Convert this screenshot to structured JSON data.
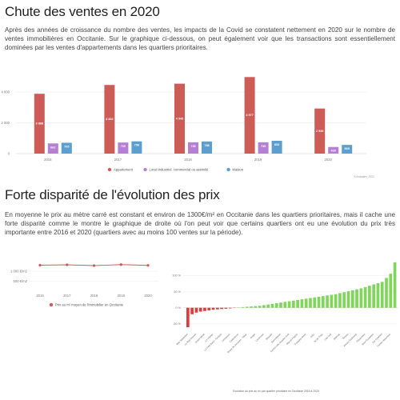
{
  "section1": {
    "title": "Chute des ventes en 2020",
    "text": "Après des années de croissance du nombre des ventes, les impacts de la Covid se constatent nettement en 2020 sur le nombre de ventes immobilières en Occitanie. Sur le graphique ci-dessous, on peut également voir que les transactions sont essentiellement dominées par les ventes d'appartements dans les quartiers prioritaires."
  },
  "section2": {
    "title": "Forte disparité de l'évolution des prix",
    "text": "En moyenne le prix au mètre carré est constant et environ de 1300€/m² en Occitanie dans les quartiers prioritaires, mais il cache une forte disparité comme le montre le graphique de droite où l'on peut voir que certains quartiers ont eu une évolution du prix très importante entre 2016 et 2020 (quartiers avec au moins 100 ventes sur la période)."
  },
  "colors": {
    "appartement": "#cd5c57",
    "local": "#b57fd4",
    "maison": "#5a9fcf",
    "line": "#cd5c57",
    "negative": "#e23a3a",
    "positive": "#7fd65a"
  },
  "chart_data": [
    {
      "type": "bar",
      "categories": [
        "2016",
        "2017",
        "2018",
        "2019",
        "2020"
      ],
      "series": [
        {
          "name": "Appartement",
          "values": [
            3888,
            4462,
            4545,
            4977,
            2930
          ],
          "labels": [
            "3 888",
            "4 462",
            "4 545",
            "4 977",
            "2 930"
          ]
        },
        {
          "name": "Local industriel. commercial ou assimilé",
          "values": [
            662,
            720,
            735,
            735,
            430
          ],
          "labels": [
            "662",
            "720",
            "735",
            "735",
            "430"
          ]
        },
        {
          "name": "Maison",
          "values": [
            705,
            796,
            788,
            833,
            565
          ],
          "labels": [
            "705",
            "796",
            "788",
            "833",
            "565"
          ]
        }
      ],
      "yticks": [
        0,
        2000,
        4000
      ],
      "ytick_labels": [
        "0",
        "2 000",
        "4 000"
      ],
      "ylim": [
        0,
        5200
      ],
      "legend": "bottom",
      "source": "Kondratiev 2021"
    },
    {
      "type": "line",
      "categories": [
        "2016",
        "2017",
        "2018",
        "2019",
        "2020"
      ],
      "series": [
        {
          "name": "Prix au m² moyen de l'immobilier en Occitanie",
          "values": [
            1300,
            1320,
            1280,
            1330,
            1290
          ]
        }
      ],
      "yticks": [
        500,
        1000
      ],
      "ytick_labels": [
        "500 €/m2",
        "1 000 €/m2"
      ],
      "ylim": [
        0,
        1600
      ],
      "legend": "bottom"
    },
    {
      "type": "bar",
      "title": "Evolution du prix au m² par quartier prioritaire en Occitanie 2016 à 2020",
      "categories": [
        "Mas Sebastien",
        "Saint-Michel",
        "Le Mas Drevon",
        "Chemin Bas d'Avignon",
        "Grand Mirail",
        "Mayrargues",
        "Le Viguier",
        "Saint Lazare",
        "Le Petit Bard - Pergola",
        "Centre Ancien",
        "Lemasson",
        "Nouveau Centre",
        "Celleneuve",
        "Pompignane",
        "Route de Seysses - Tabar",
        "Hauts de Massane",
        "Arago",
        "La Devèze",
        "Cévennes",
        "Les Izards - La Vache",
        "Mossan",
        "Pissevin - Valdegour",
        "Saint-Martin",
        "Val d'Argent",
        "Centre-ville Quartier-Sud",
        "Petit Bard",
        "Marcel Pagnol",
        "Bagatelle",
        "Fontaine Noire",
        "Garrigues - Comète",
        "Gély",
        "Vaguerie",
        "Île de Thau",
        "Paillade",
        "Cité Sud",
        "Les Aubiers",
        "Blanzat",
        "Croix d'Argent",
        "Tertres",
        "Las Planas",
        "Ancien Faubourg",
        "Près d'Arènes",
        "Figuerolles",
        "Beaucaire Centre",
        "Neuf Fontaines",
        "Nogarède",
        "Zac Champs",
        "Trois Cocus",
        "Centre Historique",
        "La Reynerie"
      ],
      "values": [
        -60,
        -20,
        -15,
        -12,
        -10,
        -8,
        -6,
        -5,
        -4,
        -3,
        -2,
        -1,
        1,
        2,
        3,
        4,
        5,
        6,
        8,
        10,
        12,
        14,
        16,
        18,
        20,
        22,
        24,
        26,
        28,
        30,
        32,
        34,
        36,
        38,
        40,
        42,
        45,
        48,
        51,
        54,
        57,
        60,
        64,
        68,
        72,
        76,
        80,
        92,
        105,
        140
      ],
      "yticks": [
        100,
        50,
        0,
        -50
      ],
      "ytick_labels": [
        "100 %",
        "50 %",
        "0 %",
        "-50 %"
      ],
      "ylim": [
        -70,
        150
      ]
    }
  ]
}
